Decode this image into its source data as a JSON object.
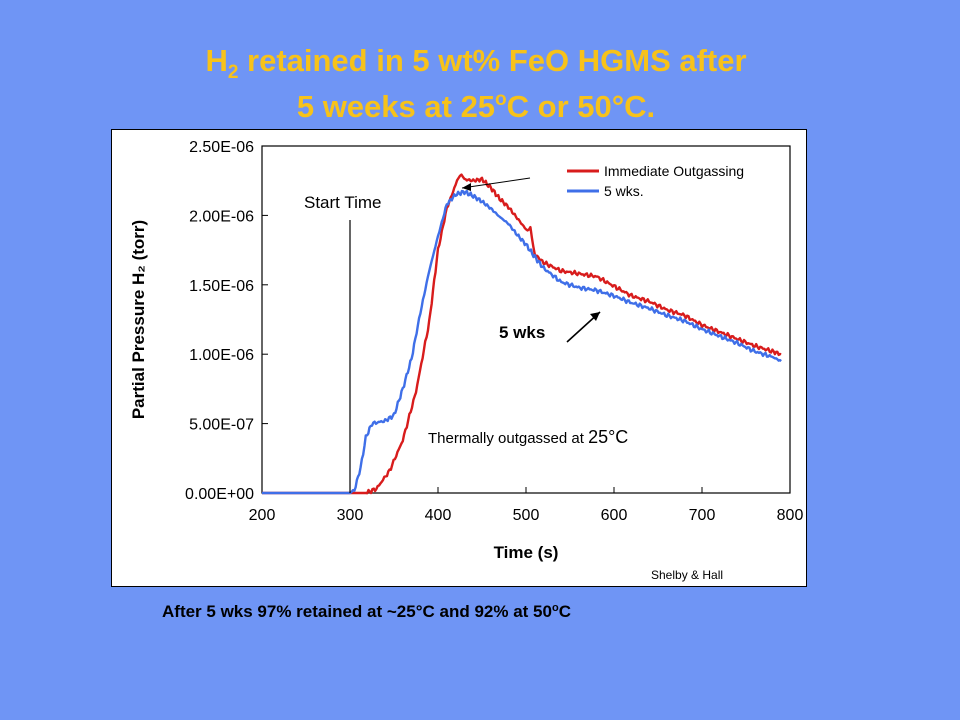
{
  "title": {
    "h": "H",
    "sub_2": "2",
    "line1_rest": " retained in 5 wt% FeO HGMS after",
    "line2_a": "5 weeks at 25",
    "sup_o": "o",
    "line2_b": "C or 50°C."
  },
  "footer": {
    "text_a": "After 5 wks 97% retained at ~25°C and 92% at 50",
    "sup_o": "o",
    "text_b": "C"
  },
  "colors": {
    "background": "#6f95f5",
    "title": "#f7c21a",
    "immediate": "#d81c1c",
    "five_wks": "#3f6fe8"
  },
  "chart_data": {
    "type": "line",
    "xlabel": "Time (s)",
    "ylabel": "Partial Pressure H₂ (torr)",
    "xlim": [
      200,
      800
    ],
    "ylim": [
      0,
      2.5e-06
    ],
    "x_ticks": [
      "200",
      "300",
      "400",
      "500",
      "600",
      "700",
      "800"
    ],
    "y_ticks": [
      "0.00E+00",
      "5.00E-07",
      "1.00E-06",
      "1.50E-06",
      "2.00E-06",
      "2.50E-06"
    ],
    "grid": false,
    "legend_position": "top-right",
    "series": [
      {
        "name": "Immediate Outgassing",
        "color": "#d81c1c",
        "x": [
          200,
          300,
          318,
          330,
          345,
          360,
          375,
          390,
          400,
          410,
          420,
          425,
          430,
          440,
          450,
          460,
          470,
          480,
          490,
          500,
          505,
          510,
          520,
          540,
          560,
          580,
          600,
          620,
          640,
          660,
          680,
          700,
          720,
          740,
          760,
          780,
          790
        ],
        "y": [
          0,
          0,
          0,
          3e-08,
          1.6e-07,
          3.8e-07,
          7.3e-07,
          1.23e-06,
          1.75e-06,
          2.05e-06,
          2.22e-06,
          2.3e-06,
          2.26e-06,
          2.25e-06,
          2.26e-06,
          2.2e-06,
          2.12e-06,
          2.06e-06,
          1.98e-06,
          1.9e-06,
          1.9e-06,
          1.72e-06,
          1.66e-06,
          1.6e-06,
          1.58e-06,
          1.56e-06,
          1.49e-06,
          1.42e-06,
          1.38e-06,
          1.32e-06,
          1.28e-06,
          1.21e-06,
          1.16e-06,
          1.11e-06,
          1.06e-06,
          1.02e-06,
          1e-06
        ]
      },
      {
        "name": "5 wks.",
        "color": "#3f6fe8",
        "x": [
          200,
          300,
          305,
          312,
          318,
          325,
          340,
          350,
          360,
          370,
          380,
          390,
          400,
          410,
          420,
          430,
          440,
          450,
          460,
          470,
          480,
          490,
          500,
          510,
          520,
          540,
          560,
          580,
          600,
          620,
          640,
          660,
          680,
          700,
          720,
          740,
          760,
          780,
          790
        ],
        "y": [
          0,
          0,
          2e-08,
          1.8e-07,
          4e-07,
          5e-07,
          5.2e-07,
          5.6e-07,
          7.5e-07,
          9.7e-07,
          1.3e-06,
          1.6e-06,
          1.85e-06,
          2.08e-06,
          2.15e-06,
          2.17e-06,
          2.14e-06,
          2.1e-06,
          2.05e-06,
          1.99e-06,
          1.94e-06,
          1.86e-06,
          1.79e-06,
          1.7e-06,
          1.62e-06,
          1.52e-06,
          1.48e-06,
          1.46e-06,
          1.42e-06,
          1.37e-06,
          1.33e-06,
          1.28e-06,
          1.24e-06,
          1.18e-06,
          1.13e-06,
          1.08e-06,
          1.02e-06,
          9.8e-07,
          9.5e-07
        ]
      }
    ],
    "annotations": [
      {
        "id": "start_time",
        "text": "Start Time",
        "x": 300
      },
      {
        "id": "five_wks",
        "text": "5 wks"
      },
      {
        "id": "thermal",
        "text_a": "Thermally outgassed at ",
        "text_b": "25°C"
      },
      {
        "id": "credit",
        "text": "Shelby & Hall"
      }
    ]
  }
}
